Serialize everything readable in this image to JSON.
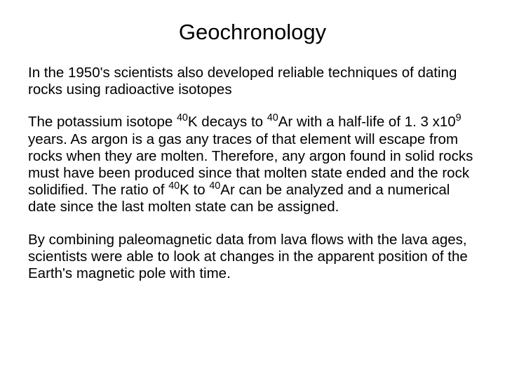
{
  "title": "Geochronology",
  "para1_text": "In the 1950's scientists also developed reliable techniques of dating rocks using radioactive isotopes",
  "para2": {
    "a": "The potassium isotope ",
    "sup1": "40",
    "b": "K decays to ",
    "sup2": "40",
    "c": "Ar with a half-life of 1. 3 x10",
    "sup3": "9",
    "d": " years. As argon is a gas any traces of that element will escape from rocks when they are molten. Therefore, any argon found in solid rocks must have been produced since that molten state ended and the rock solidified. The ratio of ",
    "sup4": "40",
    "e": "K to ",
    "sup5": "40",
    "f": "Ar can be analyzed and a numerical date since the last molten state can be assigned."
  },
  "para3_text": "By combining paleomagnetic data from lava flows with the lava ages, scientists were able to look at changes in the apparent position of the Earth's magnetic pole with time."
}
